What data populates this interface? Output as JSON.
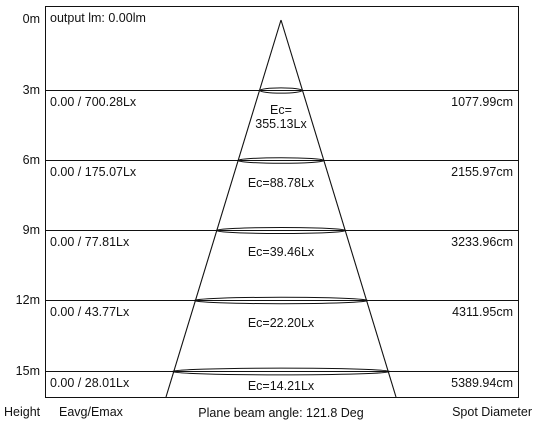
{
  "header": {
    "output": "output lm: 0.00lm"
  },
  "rows": [
    {
      "height": "0m"
    },
    {
      "height": "3m",
      "eavg_emax": "0.00 / 700.28Lx",
      "ec_line1": "Ec=",
      "ec_line2": "355.13Lx",
      "diameter": "1077.99cm"
    },
    {
      "height": "6m",
      "eavg_emax": "0.00 / 175.07Lx",
      "ec": "Ec=88.78Lx",
      "diameter": "2155.97cm"
    },
    {
      "height": "9m",
      "eavg_emax": "0.00 / 77.81Lx",
      "ec": "Ec=39.46Lx",
      "diameter": "3233.96cm"
    },
    {
      "height": "12m",
      "eavg_emax": "0.00 / 43.77Lx",
      "ec": "Ec=22.20Lx",
      "diameter": "4311.95cm"
    },
    {
      "height": "15m",
      "eavg_emax": "0.00 / 28.01Lx",
      "ec": "Ec=14.21Lx",
      "diameter": "5389.94cm"
    }
  ],
  "footer": {
    "height": "Height",
    "eavg_emax": "Eavg/Emax",
    "beam_angle": "Plane beam angle: 121.8 Deg",
    "spot_diameter": "Spot Diameter"
  }
}
